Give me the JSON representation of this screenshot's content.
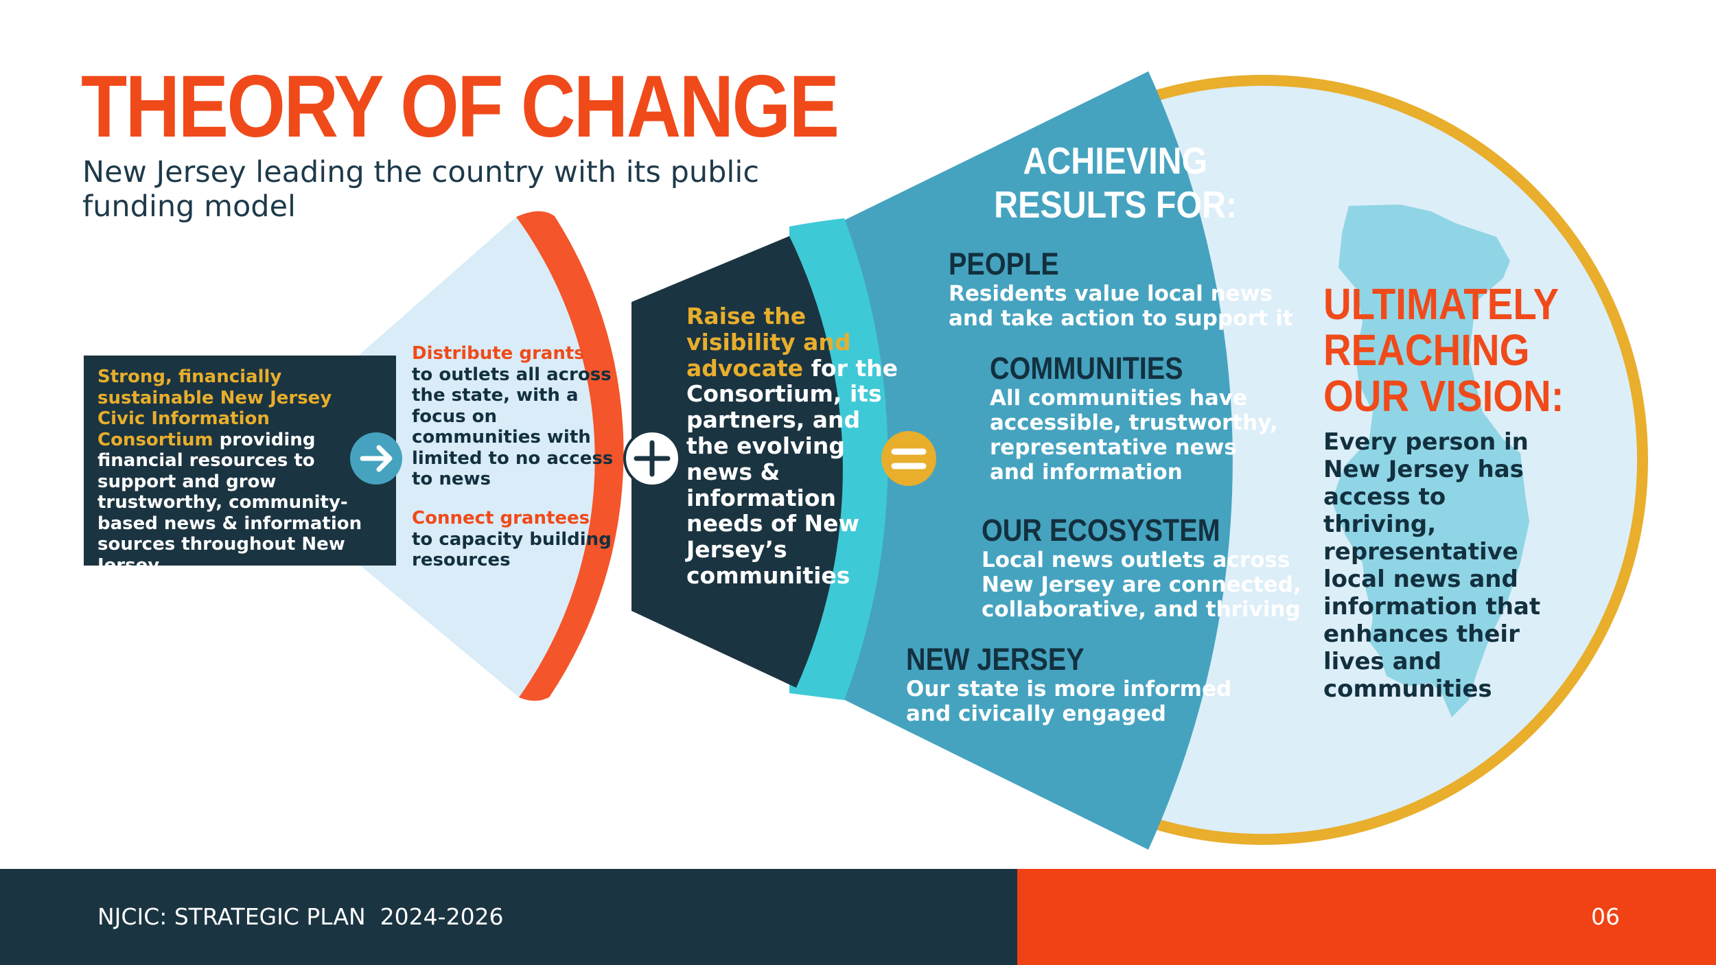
{
  "header": {
    "title": "THEORY OF CHANGE",
    "subtitle": "New Jersey leading the country with its public funding model"
  },
  "input_box": {
    "highlight": "Strong, financially sustainable New Jersey Civic Information Consortium",
    "text": "providing financial resources to support and grow trustworthy, community-based news & information sources throughout New Jersey."
  },
  "activities": [
    {
      "highlight": "Distribute grants",
      "text": "to outlets all across the state, with a focus on communities with limited to no access to news"
    },
    {
      "highlight": "Connect grantees",
      "text": "to capacity building resources"
    }
  ],
  "advocacy": {
    "highlight": "Raise the visibility and advocate",
    "text": "for the Consortium, its partners, and the evolving news & information needs of New Jersey’s communities"
  },
  "results": {
    "heading_line1": "ACHIEVING",
    "heading_line2": "RESULTS FOR:",
    "items": [
      {
        "title": "PEOPLE",
        "line1": "Residents value local news",
        "line2": "and take action to support it"
      },
      {
        "title": "COMMUNITIES",
        "line1": "All communities have",
        "line2": "accessible, trustworthy,",
        "line3": "representative news",
        "line4": "and information"
      },
      {
        "title": "OUR ECOSYSTEM",
        "line1": "Local news outlets across",
        "line2": "New Jersey are connected,",
        "line3": "collaborative, and thriving"
      },
      {
        "title": "NEW JERSEY",
        "line1": "Our state is more informed",
        "line2": "and civically engaged"
      }
    ]
  },
  "vision": {
    "heading_line1": "ULTIMATELY",
    "heading_line2": "REACHING",
    "heading_line3": "OUR VISION:",
    "text": "Every person in New Jersey has access to thriving, representative local news and information that enhances their lives and communities"
  },
  "connectors": {
    "arrow_icon": "arrow-right-icon",
    "plus_icon": "plus-icon",
    "equals_icon": "equals-icon"
  },
  "colors": {
    "orange": "#f04a1a",
    "navy": "#1b3441",
    "gold": "#e8ae2c",
    "teal": "#45a3bf",
    "cyan": "#3ec9d6",
    "light_blue": "#d9ecf8"
  },
  "footer": {
    "label": "NJCIC: STRATEGIC PLAN  2024-2026",
    "page": "06"
  }
}
